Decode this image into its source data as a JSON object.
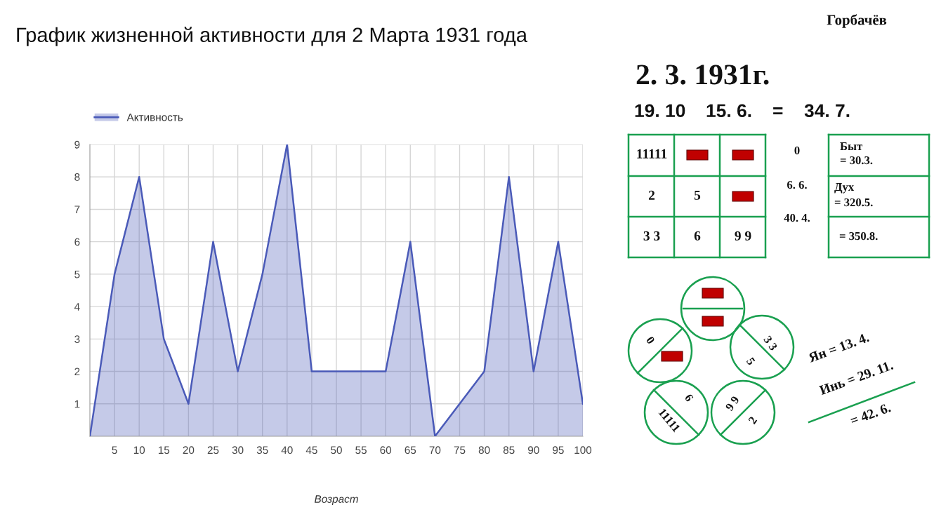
{
  "chart_data": [
    {
      "type": "area",
      "title": "График жизненной активности для 2 Марта 1931 года",
      "xlabel": "Возраст",
      "x": [
        0,
        5,
        10,
        15,
        20,
        25,
        30,
        35,
        40,
        45,
        50,
        55,
        60,
        65,
        70,
        75,
        80,
        85,
        90,
        95,
        100
      ],
      "series": [
        {
          "name": "Активность",
          "color": "#4a5ab8",
          "values": [
            0,
            5,
            8,
            3,
            1,
            6,
            2,
            5,
            9,
            2,
            2,
            2,
            2,
            6,
            0,
            1,
            2,
            8,
            2,
            6,
            1
          ]
        }
      ],
      "xlim": [
        0,
        100
      ],
      "xticks": [
        5,
        10,
        15,
        20,
        25,
        30,
        35,
        40,
        45,
        50,
        55,
        60,
        65,
        70,
        75,
        80,
        85,
        90,
        95,
        100
      ],
      "ylim": [
        0,
        9
      ],
      "yticks": [
        1,
        2,
        3,
        4,
        5,
        6,
        7,
        8,
        9
      ],
      "grid": true,
      "legend": "top left"
    },
    {
      "type": "other",
      "annotations": [
        "Горбачёв",
        "2. 3. 1931г.",
        "19. 10",
        "15. 6.",
        "=",
        "34. 7.",
        "11111",
        "2",
        "5",
        "3 3",
        "6",
        "9 9",
        "0",
        "6. 6.",
        "40. 4.",
        "Быт",
        "= 30.3.",
        "Дух",
        "= 320.5.",
        "= 350.8.",
        "0",
        "3 3",
        "5",
        "6",
        "11111",
        "9 9",
        "2",
        "Ян = 13. 4.",
        "Инь = 29. 11.",
        "= 42. 6."
      ]
    }
  ]
}
